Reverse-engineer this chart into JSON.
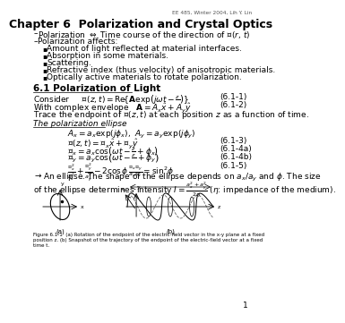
{
  "title": "Chapter 6  Polarization and Crystal Optics",
  "header_right": "EE 485, Winter 2004, Lih Y. Lin",
  "page_number": "1",
  "background_color": "#ffffff",
  "text_color": "#000000",
  "body_font_size": 6.5,
  "small_font_size": 5.0,
  "title_font_size": 9.0,
  "section_font_size": 7.5
}
